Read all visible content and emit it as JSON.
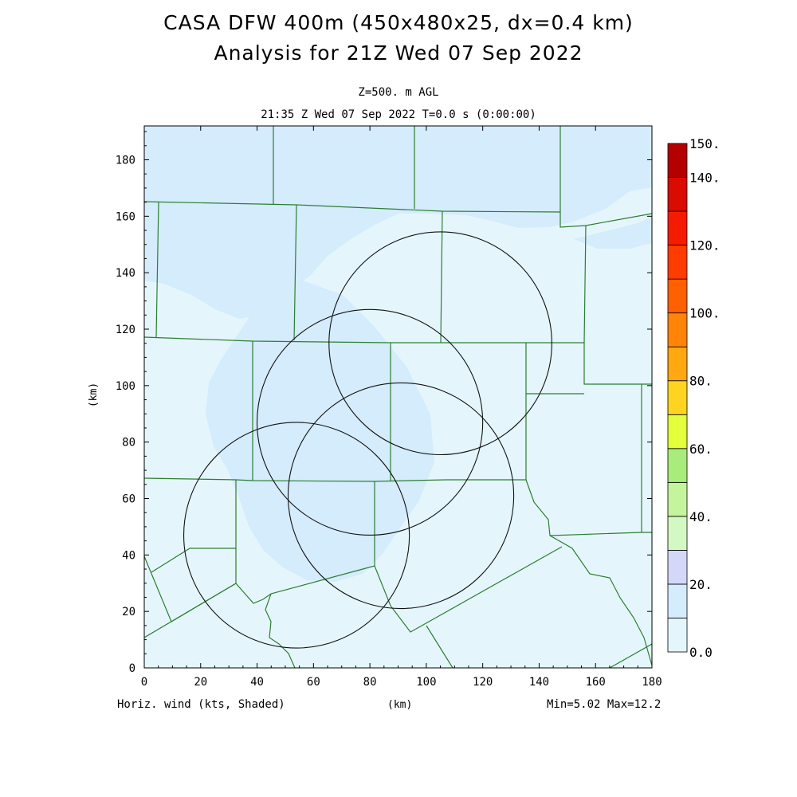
{
  "header": {
    "title_line1": "CASA DFW 400m (450x480x25, dx=0.4 km)",
    "title_line2": "Analysis for 21Z Wed 07 Sep 2022",
    "level": "Z=500. m AGL",
    "time": "21:35 Z Wed 07 Sep 2022   T=0.0 s (0:00:00)"
  },
  "axes": {
    "x_label": "(km)",
    "y_label": "(km)",
    "x_ticks": [
      "0",
      "20",
      "40",
      "60",
      "80",
      "100",
      "120",
      "140",
      "160",
      "180"
    ],
    "y_ticks": [
      "0",
      "20",
      "40",
      "60",
      "80",
      "100",
      "120",
      "140",
      "160",
      "180"
    ],
    "x_range": [
      0,
      180
    ],
    "y_range": [
      0,
      192
    ]
  },
  "footer": {
    "field": "Horiz. wind (kts, Shaded)",
    "stats": "Min=5.02 Max=12.2"
  },
  "colorbar": {
    "labels": [
      "0.0",
      "20.",
      "40.",
      "60.",
      "80.",
      "100.",
      "120.",
      "140.",
      "150."
    ],
    "colors": [
      "#e4f6fc",
      "#d4ecfc",
      "#d4d8f8",
      "#d4f8c4",
      "#c4f49c",
      "#a8ec7c",
      "#e4ff3c",
      "#ffd420",
      "#ffa810",
      "#ff8408",
      "#ff6000",
      "#ff3c00",
      "#f41c00",
      "#d80c00",
      "#b40000"
    ]
  },
  "radars": [
    {
      "x": 105,
      "y": 115,
      "r": 39.5
    },
    {
      "x": 80,
      "y": 87,
      "r": 40
    },
    {
      "x": 91,
      "y": 61,
      "r": 40
    },
    {
      "x": 54,
      "y": 47,
      "r": 40
    }
  ],
  "fill_colors": {
    "base": "#e4f6fc",
    "band": "#d4ecfc",
    "boundary": "#2e7d32"
  }
}
